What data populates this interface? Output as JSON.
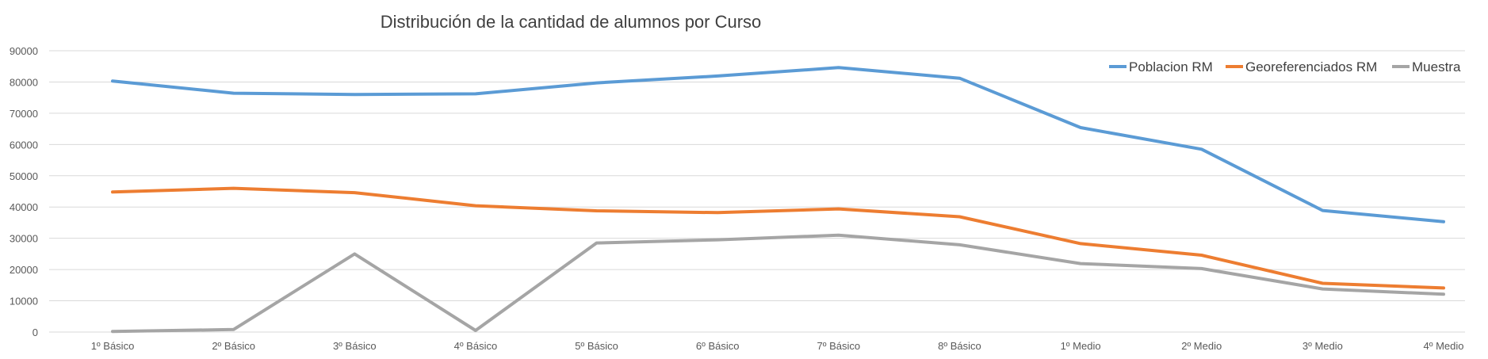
{
  "chart_data": {
    "type": "line",
    "title": "Distribución de la cantidad de alumnos por Curso",
    "xlabel": "",
    "ylabel": "",
    "ylim": [
      0,
      90000
    ],
    "yticks": [
      "0",
      "10000",
      "20000",
      "30000",
      "40000",
      "50000",
      "60000",
      "70000",
      "80000",
      "90000"
    ],
    "grid": true,
    "legend": "top-right",
    "categories": [
      "1º Básico",
      "2º Básico",
      "3º Básico",
      "4º Básico",
      "5º Básico",
      "6º Básico",
      "7º Básico",
      "8º Básico",
      "1º Medio",
      "2º Medio",
      "3º Medio",
      "4º Medio"
    ],
    "series": [
      {
        "name": "Poblacion RM",
        "color": "#5b9bd5",
        "values": [
          80300,
          76400,
          76000,
          76200,
          79700,
          81900,
          84600,
          81200,
          65400,
          58500,
          38900,
          35300
        ]
      },
      {
        "name": "Georeferenciados RM",
        "color": "#ed7d31",
        "values": [
          44800,
          46000,
          44600,
          40400,
          38800,
          38200,
          39400,
          36900,
          28300,
          24600,
          15600,
          14100
        ]
      },
      {
        "name": "Muestra",
        "color": "#a5a5a5",
        "values": [
          200,
          800,
          25000,
          500,
          28500,
          29500,
          31000,
          27900,
          21900,
          20300,
          13800,
          12100
        ]
      }
    ]
  }
}
